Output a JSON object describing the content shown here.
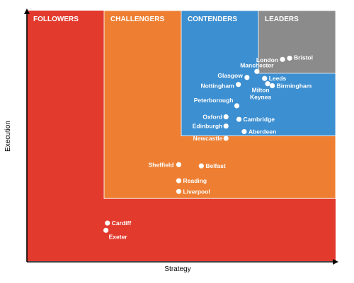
{
  "chart_data": {
    "type": "scatter",
    "title": "",
    "xlabel": "Strategy",
    "ylabel": "Execution",
    "xlim": [
      0,
      100
    ],
    "ylim": [
      0,
      100
    ],
    "grid": false,
    "zones": [
      {
        "name": "FOLLOWERS",
        "color": "#e23b2e",
        "x": [
          0,
          100
        ],
        "y": [
          0,
          100
        ]
      },
      {
        "name": "CHALLENGERS",
        "color": "#ee7f32",
        "x": [
          25,
          100
        ],
        "y": [
          25,
          100
        ]
      },
      {
        "name": "CONTENDERS",
        "color": "#3c8fd1",
        "x": [
          50,
          100
        ],
        "y": [
          50,
          100
        ]
      },
      {
        "name": "LEADERS",
        "color": "#8b8b8b",
        "x": [
          75,
          100
        ],
        "y": [
          75,
          100
        ]
      }
    ],
    "points": [
      {
        "name": "London",
        "x": 82.8,
        "y": 80.5
      },
      {
        "name": "Bristol",
        "x": 85.1,
        "y": 81.0
      },
      {
        "name": "Manchester",
        "x": 74.5,
        "y": 75.7
      },
      {
        "name": "Glasgow",
        "x": 71.3,
        "y": 73.3
      },
      {
        "name": "Leeds",
        "x": 77.0,
        "y": 72.9
      },
      {
        "name": "Nottingham",
        "x": 68.5,
        "y": 70.5
      },
      {
        "name": "Milton Keynes",
        "x": 78.0,
        "y": 70.8
      },
      {
        "name": "Birmingham",
        "x": 79.5,
        "y": 70.0
      },
      {
        "name": "Peterborough",
        "x": 68.0,
        "y": 62.0
      },
      {
        "name": "Oxford",
        "x": 64.5,
        "y": 57.6
      },
      {
        "name": "Cambridge",
        "x": 68.7,
        "y": 56.6
      },
      {
        "name": "Edinburgh",
        "x": 64.5,
        "y": 53.9
      },
      {
        "name": "Aberdeen",
        "x": 70.4,
        "y": 51.7
      },
      {
        "name": "Newcastle",
        "x": 64.5,
        "y": 49.0
      },
      {
        "name": "Sheffield",
        "x": 49.2,
        "y": 38.5
      },
      {
        "name": "Belfast",
        "x": 56.5,
        "y": 38.0
      },
      {
        "name": "Reading",
        "x": 49.2,
        "y": 32.1
      },
      {
        "name": "Liverpool",
        "x": 49.2,
        "y": 27.8
      },
      {
        "name": "Cardiff",
        "x": 26.1,
        "y": 15.2
      },
      {
        "name": "Exeter",
        "x": 25.6,
        "y": 12.3
      }
    ]
  }
}
